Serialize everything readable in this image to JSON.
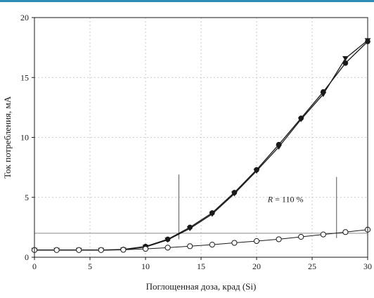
{
  "chart_data": {
    "type": "line",
    "title": "",
    "xlabel": "Поглощенная доза, крад (Si)",
    "ylabel": "Ток потребления, мА",
    "xlim": [
      0,
      30
    ],
    "ylim": [
      0,
      20
    ],
    "xticks": [
      0,
      5,
      10,
      15,
      20,
      25,
      30
    ],
    "yticks": [
      0,
      5,
      10,
      15,
      20
    ],
    "grid": true,
    "legend": "none",
    "annotation": {
      "prefix": "R",
      "text": " = 110 %",
      "x": 21,
      "y": 4.6
    },
    "threshold": {
      "y": 2.0
    },
    "markers_vertical": [
      {
        "x": 13,
        "y_from": 1.5,
        "y_to": 6.9
      },
      {
        "x": 27.2,
        "y_from": 1.6,
        "y_to": 6.7
      }
    ],
    "series": [
      {
        "marker": "filled-circle",
        "x": [
          0,
          2,
          4,
          6,
          8,
          10,
          12,
          14,
          16,
          18,
          20,
          22,
          24,
          26,
          28,
          30
        ],
        "values": [
          0.6,
          0.6,
          0.6,
          0.6,
          0.65,
          0.9,
          1.5,
          2.5,
          3.7,
          5.4,
          7.3,
          9.4,
          11.6,
          13.8,
          16.2,
          18.0
        ]
      },
      {
        "marker": "filled-triangle-down",
        "x": [
          0,
          2,
          4,
          6,
          8,
          10,
          12,
          14,
          16,
          18,
          20,
          22,
          24,
          26,
          28,
          30
        ],
        "values": [
          0.6,
          0.6,
          0.6,
          0.6,
          0.62,
          0.85,
          1.45,
          2.4,
          3.6,
          5.3,
          7.2,
          9.2,
          11.5,
          13.6,
          16.6,
          18.1
        ]
      },
      {
        "marker": "open-circle",
        "x": [
          0,
          2,
          4,
          6,
          8,
          10,
          12,
          14,
          16,
          18,
          20,
          22,
          24,
          26,
          28,
          30
        ],
        "values": [
          0.6,
          0.6,
          0.6,
          0.6,
          0.62,
          0.7,
          0.8,
          0.92,
          1.05,
          1.2,
          1.35,
          1.5,
          1.7,
          1.9,
          2.1,
          2.3
        ]
      }
    ]
  }
}
